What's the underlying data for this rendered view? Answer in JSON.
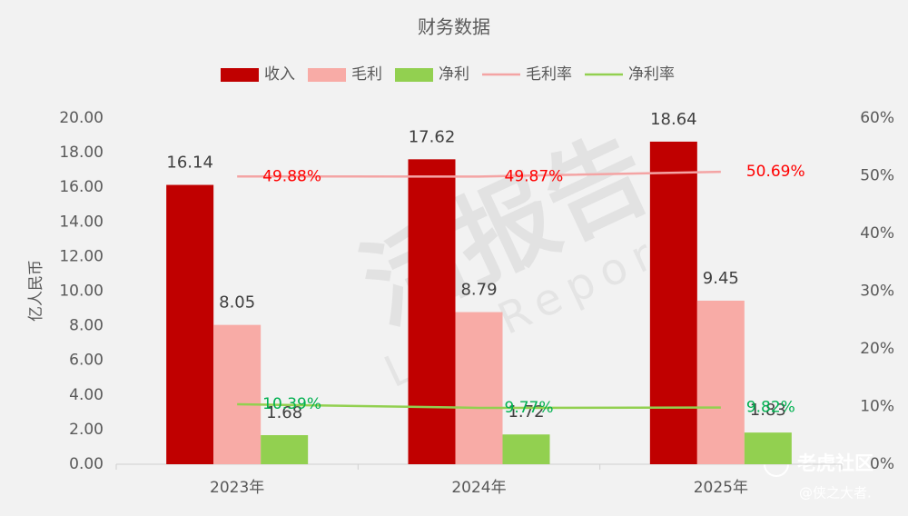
{
  "chart_data": {
    "type": "bar",
    "title": "财务数据",
    "y_label": "亿人民币",
    "categories": [
      "2023年",
      "2024年",
      "2025年"
    ],
    "series": [
      {
        "name": "收入",
        "type": "bar",
        "color": "#c00000",
        "values": [
          16.14,
          17.62,
          18.64
        ]
      },
      {
        "name": "毛利",
        "type": "bar",
        "color": "#f8aba6",
        "values": [
          8.05,
          8.79,
          9.45
        ]
      },
      {
        "name": "净利",
        "type": "bar",
        "color": "#92d050",
        "values": [
          1.68,
          1.72,
          1.83
        ]
      },
      {
        "name": "毛利率",
        "type": "line",
        "axis": "y2",
        "color": "#f4a4a4",
        "label_color": "#ff0000",
        "values": [
          49.88,
          49.87,
          50.69
        ],
        "value_labels": [
          "49.88%",
          "49.87%",
          "50.69%"
        ]
      },
      {
        "name": "净利率",
        "type": "line",
        "axis": "y2",
        "color": "#92d050",
        "label_color": "#00b050",
        "values": [
          10.39,
          9.77,
          9.82
        ],
        "value_labels": [
          "10.39%",
          "9.77%",
          "9.82%"
        ]
      }
    ],
    "ylim": [
      0,
      20
    ],
    "yticks": [
      {
        "value": 0,
        "label": "0.00"
      },
      {
        "value": 2,
        "label": "2.00"
      },
      {
        "value": 4,
        "label": "4.00"
      },
      {
        "value": 6,
        "label": "6.00"
      },
      {
        "value": 8,
        "label": "8.00"
      },
      {
        "value": 10,
        "label": "10.00"
      },
      {
        "value": 12,
        "label": "12.00"
      },
      {
        "value": 14,
        "label": "14.00"
      },
      {
        "value": 16,
        "label": "16.00"
      },
      {
        "value": 18,
        "label": "18.00"
      },
      {
        "value": 20,
        "label": "20.00"
      }
    ],
    "y2lim": [
      0,
      60
    ],
    "y2ticks": [
      {
        "value": 0,
        "label": "0%"
      },
      {
        "value": 10,
        "label": "10%"
      },
      {
        "value": 20,
        "label": "20%"
      },
      {
        "value": 30,
        "label": "30%"
      },
      {
        "value": 40,
        "label": "40%"
      },
      {
        "value": 50,
        "label": "50%"
      },
      {
        "value": 60,
        "label": "60%"
      }
    ],
    "legend": "top",
    "watermarks": [
      "活报告",
      "LiveReport",
      "老虎社区",
      "@侠之大者."
    ]
  }
}
